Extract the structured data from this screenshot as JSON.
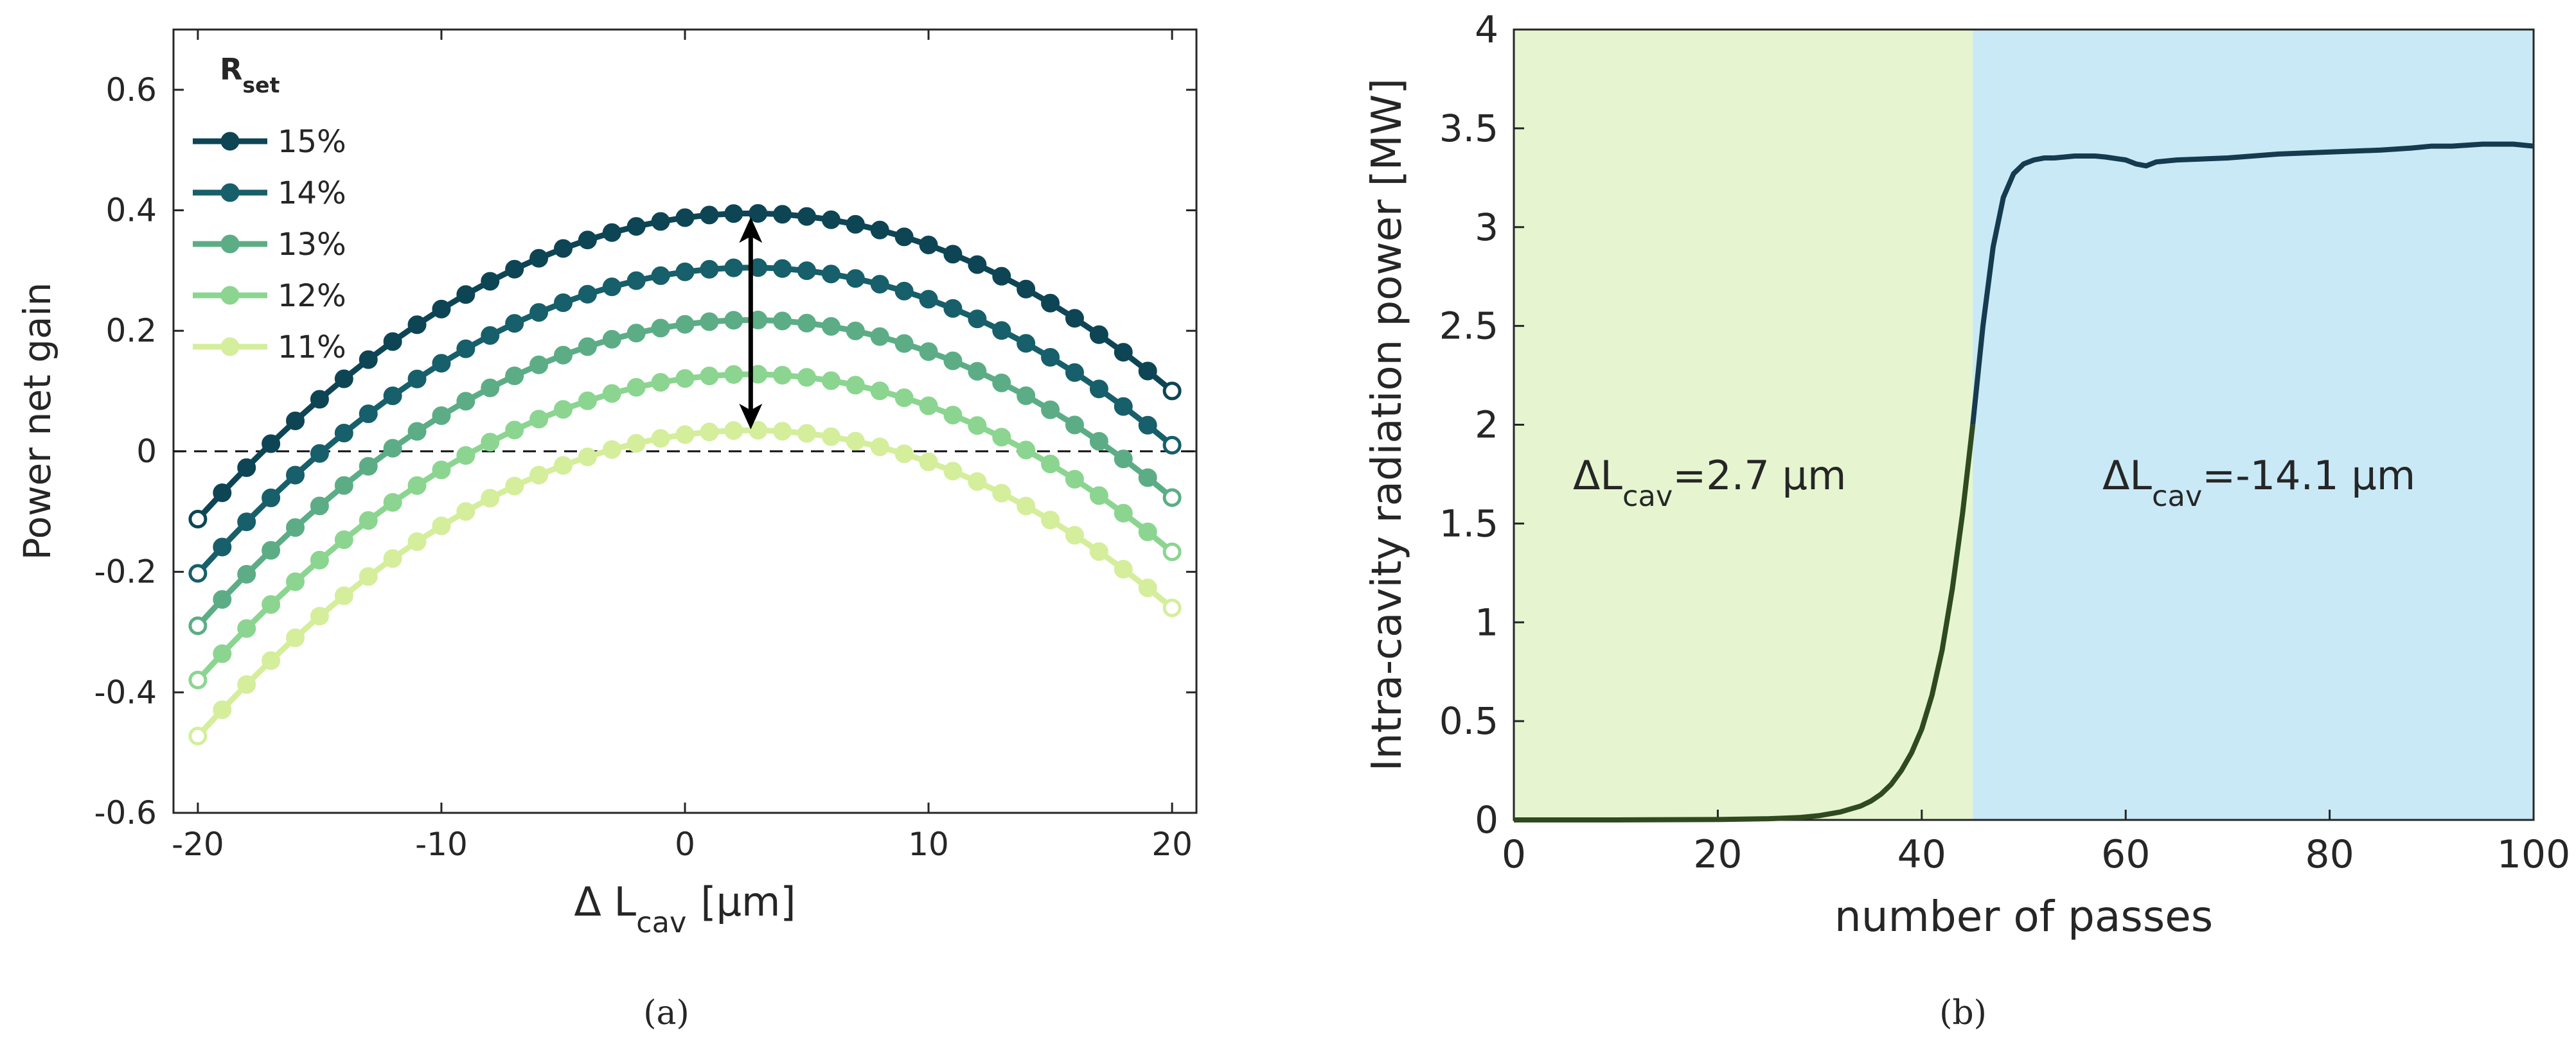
{
  "chart_data": [
    {
      "panel_label": "(a)",
      "type": "line",
      "xlabel": {
        "prefix": "Δ L",
        "sub": "cav",
        "unit": "[μm]"
      },
      "ylabel": "Power net gain",
      "xlim": [
        -21,
        21
      ],
      "ylim": [
        -0.6,
        0.7
      ],
      "xticks": [
        -20,
        -10,
        0,
        10,
        20
      ],
      "xtick_labels": [
        "-20",
        "-10",
        "0",
        "10",
        "20"
      ],
      "yticks": [
        -0.6,
        -0.4,
        -0.2,
        0,
        0.2,
        0.4,
        0.6
      ],
      "ytick_labels": [
        "-0.6",
        "-0.4",
        "-0.2",
        "0",
        "0.2",
        "0.4",
        "0.6"
      ],
      "legend": {
        "title": "R",
        "title_sub": "set",
        "position": "top-left"
      },
      "reference_line": {
        "y": 0,
        "style": "dashed"
      },
      "annotation": {
        "type": "double-arrow",
        "x": 2.7,
        "y_from": 0.03,
        "y_to": 0.395
      },
      "x_range": [
        -20,
        20
      ],
      "points_per_series": 41,
      "series": [
        {
          "name": "15%",
          "color": "#0d4555",
          "curve": {
            "peak_x": 2.7,
            "peak_y": 0.395,
            "a": 0.000985
          }
        },
        {
          "name": "14%",
          "color": "#175f6a",
          "curve": {
            "peak_x": 2.7,
            "peak_y": 0.305,
            "a": 0.000985
          }
        },
        {
          "name": "13%",
          "color": "#5cad86",
          "curve": {
            "peak_x": 2.7,
            "peak_y": 0.218,
            "a": 0.000985
          }
        },
        {
          "name": "12%",
          "color": "#8bd591",
          "curve": {
            "peak_x": 2.7,
            "peak_y": 0.128,
            "a": 0.000985
          }
        },
        {
          "name": "11%",
          "color": "#d4ee9c",
          "curve": {
            "peak_x": 2.7,
            "peak_y": 0.035,
            "a": 0.000985
          }
        }
      ]
    },
    {
      "panel_label": "(b)",
      "type": "line",
      "xlabel": "number of passes",
      "ylabel": "Intra-cavity radiation power [MW]",
      "xlim": [
        0,
        100
      ],
      "ylim": [
        0,
        4
      ],
      "xticks": [
        0,
        20,
        40,
        60,
        80,
        100
      ],
      "xtick_labels": [
        "0",
        "20",
        "40",
        "60",
        "80",
        "100"
      ],
      "yticks": [
        0,
        0.5,
        1,
        1.5,
        2,
        2.5,
        3,
        3.5,
        4
      ],
      "ytick_labels": [
        "0",
        "0.5",
        "1",
        "1.5",
        "2",
        "2.5",
        "3",
        "3.5",
        "4"
      ],
      "regions": [
        {
          "x_from": 0,
          "x_to": 45,
          "color": "#e6f5d0",
          "label": {
            "prefix": "ΔL",
            "sub": "cav",
            "suffix": "=2.7 μm"
          }
        },
        {
          "x_from": 45,
          "x_to": 100,
          "color": "#c9e9f6",
          "label": {
            "prefix": "ΔL",
            "sub": "cav",
            "suffix": "=-14.1 μm"
          }
        }
      ],
      "series": [
        {
          "name": "power",
          "color_before": "#2f4a1e",
          "color_after": "#163b4e",
          "x": [
            0,
            10,
            20,
            25,
            28,
            30,
            32,
            34,
            35,
            36,
            37,
            38,
            39,
            40,
            41,
            42,
            43,
            44,
            45,
            46,
            47,
            48,
            49,
            50,
            51,
            52,
            53,
            55,
            57,
            58,
            60,
            61,
            62,
            63,
            65,
            70,
            75,
            80,
            85,
            88,
            90,
            92,
            95,
            98,
            100
          ],
          "y": [
            0,
            0,
            0.002,
            0.006,
            0.012,
            0.022,
            0.04,
            0.07,
            0.095,
            0.13,
            0.18,
            0.25,
            0.34,
            0.46,
            0.63,
            0.86,
            1.17,
            1.55,
            2.0,
            2.5,
            2.9,
            3.15,
            3.27,
            3.32,
            3.34,
            3.35,
            3.35,
            3.36,
            3.36,
            3.355,
            3.34,
            3.32,
            3.31,
            3.33,
            3.34,
            3.35,
            3.37,
            3.38,
            3.39,
            3.4,
            3.41,
            3.41,
            3.42,
            3.42,
            3.41
          ]
        }
      ]
    }
  ]
}
